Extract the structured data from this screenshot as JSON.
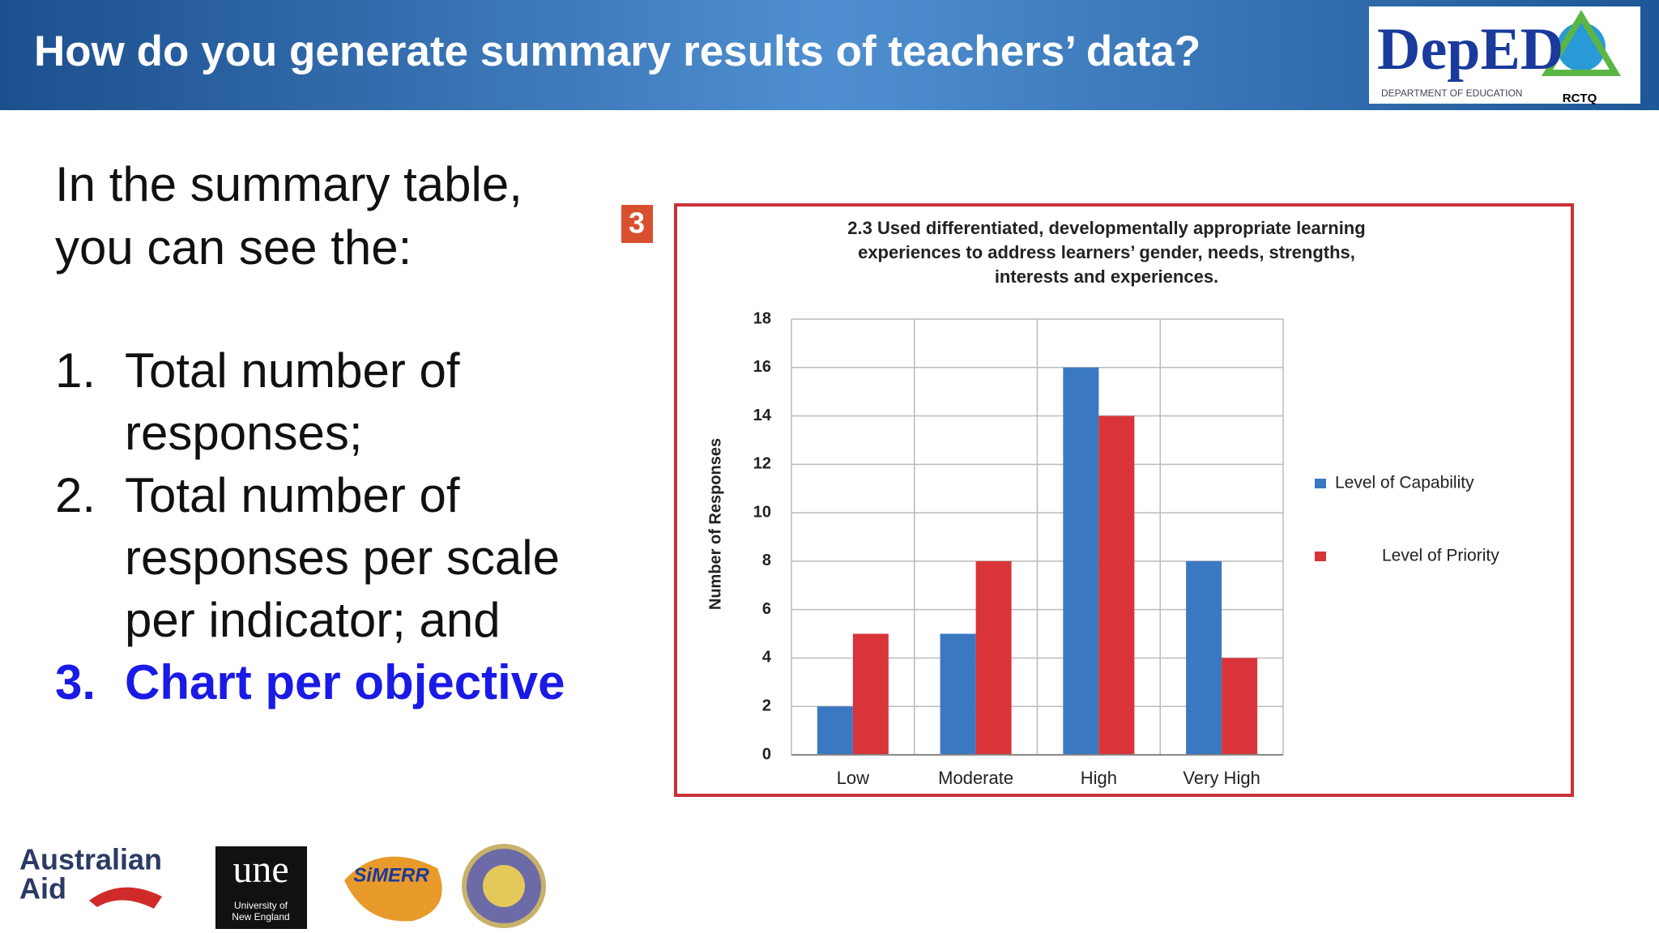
{
  "header": {
    "title": "How do you generate summary results of teachers’ data?",
    "logo": "DepED",
    "logo_caption": "DEPARTMENT OF EDUCATION",
    "logo_tag": "RCTQ"
  },
  "intro": [
    "In the summary table,",
    "you can see the:"
  ],
  "list": [
    {
      "number": "1.",
      "lines": [
        "Total number of",
        "responses;"
      ]
    },
    {
      "number": "2.",
      "lines": [
        "Total number of",
        "responses per scale",
        "per indicator; and"
      ]
    },
    {
      "number": "3.",
      "lines": [
        "Chart per objective"
      ]
    }
  ],
  "badge": "3",
  "chart_data": {
    "type": "bar",
    "title_lines": [
      "2.3 Used differentiated, developmentally appropriate learning",
      "experiences to address learners’ gender, needs, strengths,",
      "interests and experiences."
    ],
    "y_label": "Number of Responses",
    "categories": [
      "Low",
      "Moderate",
      "High",
      "Very High"
    ],
    "series": [
      {
        "name": "Level of Capability",
        "color": "#3a78c2",
        "values": [
          2,
          5,
          16,
          8
        ]
      },
      {
        "name": "Level of Priority",
        "color": "#d8343a",
        "values": [
          5,
          8,
          14,
          4
        ]
      }
    ],
    "ylim": [
      0,
      18
    ],
    "yticks": [
      0,
      2,
      4,
      6,
      8,
      10,
      12,
      14,
      16,
      18
    ],
    "grid": true,
    "legend": "right"
  },
  "footer_logos": {
    "australian_aid": [
      "Australian",
      "Aid"
    ],
    "une": "une",
    "une_caption": [
      "University of",
      "New England"
    ],
    "simerr": "SiMERR"
  }
}
